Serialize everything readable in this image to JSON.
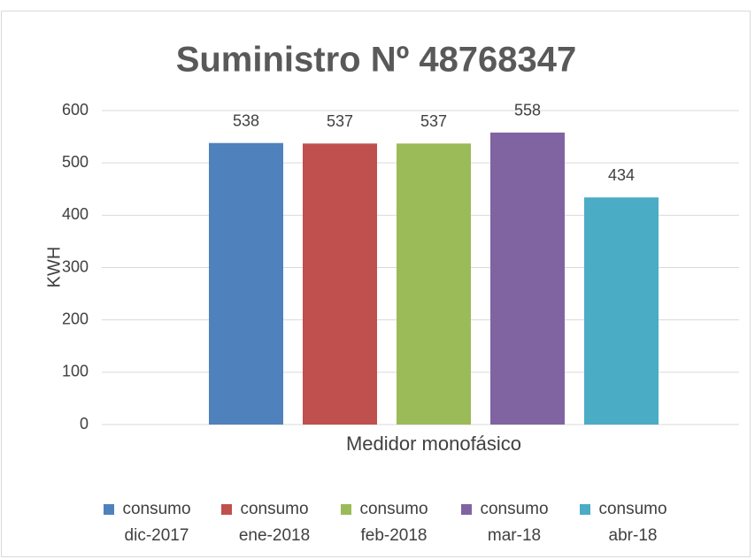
{
  "chart_data": {
    "type": "bar",
    "title": "Suministro Nº 48768347",
    "categories": [
      "Medidor monofásico"
    ],
    "series": [
      {
        "name": "consumo dic-2017",
        "color": "#4f81bd",
        "values": [
          538
        ]
      },
      {
        "name": "consumo ene-2018",
        "color": "#c0504d",
        "values": [
          537
        ]
      },
      {
        "name": "consumo feb-2018",
        "color": "#9bbb59",
        "values": [
          537
        ]
      },
      {
        "name": "consumo mar-18",
        "color": "#8064a2",
        "values": [
          558
        ]
      },
      {
        "name": "consumo abr-18",
        "color": "#4bacc6",
        "values": [
          434
        ]
      }
    ],
    "ylabel": "KWH",
    "ylim": [
      0,
      600
    ],
    "yticks": [
      0,
      100,
      200,
      300,
      400,
      500,
      600
    ],
    "grid": true,
    "legend": "bottom"
  }
}
